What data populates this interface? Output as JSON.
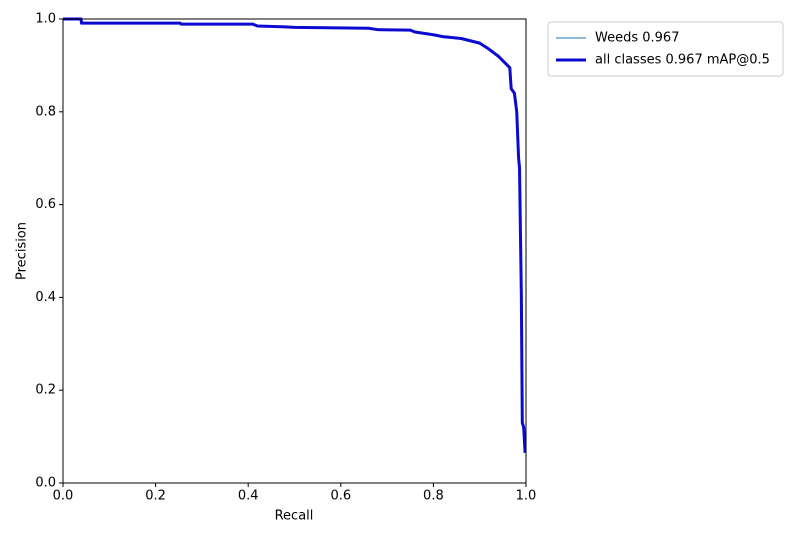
{
  "chart_data": {
    "type": "line",
    "x_label": "Recall",
    "y_label": "Precision",
    "x": [
      0,
      0.039,
      0.04,
      0.253,
      0.255,
      0.41,
      0.42,
      0.48,
      0.5,
      0.66,
      0.68,
      0.75,
      0.76,
      0.8,
      0.82,
      0.86,
      0.9,
      0.92,
      0.94,
      0.955,
      0.965,
      0.968,
      0.975,
      0.98,
      0.982,
      0.984,
      0.986,
      0.99,
      0.992,
      0.995,
      0.998
    ],
    "series": [
      {
        "name": "Weeds 0.967",
        "color": "#1f77b4",
        "linewidth": 1,
        "values": [
          1,
          1,
          0.991,
          0.991,
          0.989,
          0.989,
          0.985,
          0.983,
          0.982,
          0.98,
          0.977,
          0.976,
          0.972,
          0.966,
          0.962,
          0.958,
          0.948,
          0.935,
          0.92,
          0.905,
          0.895,
          0.85,
          0.84,
          0.8,
          0.75,
          0.7,
          0.68,
          0.4,
          0.13,
          0.12,
          0.065
        ]
      },
      {
        "name": "all classes 0.967 mAP@0.5",
        "color": "#0a0ad2",
        "linewidth": 3,
        "values": [
          1,
          1,
          0.991,
          0.991,
          0.989,
          0.989,
          0.985,
          0.983,
          0.982,
          0.98,
          0.977,
          0.976,
          0.972,
          0.966,
          0.962,
          0.958,
          0.948,
          0.935,
          0.92,
          0.905,
          0.895,
          0.85,
          0.84,
          0.8,
          0.75,
          0.7,
          0.68,
          0.4,
          0.13,
          0.12,
          0.065
        ]
      }
    ],
    "xlim": [
      0,
      1
    ],
    "ylim": [
      0,
      1
    ],
    "xticks": [
      {
        "value": 0,
        "label": "0.0"
      },
      0.2,
      0.4,
      0.6,
      0.8,
      {
        "value": 1,
        "label": "1.0"
      }
    ],
    "yticks": [
      {
        "value": 0,
        "label": "0.0"
      },
      0.2,
      0.4,
      0.6,
      0.8,
      {
        "value": 1,
        "label": "1.0"
      }
    ],
    "grid": false,
    "legend": "outside-upper-right"
  }
}
